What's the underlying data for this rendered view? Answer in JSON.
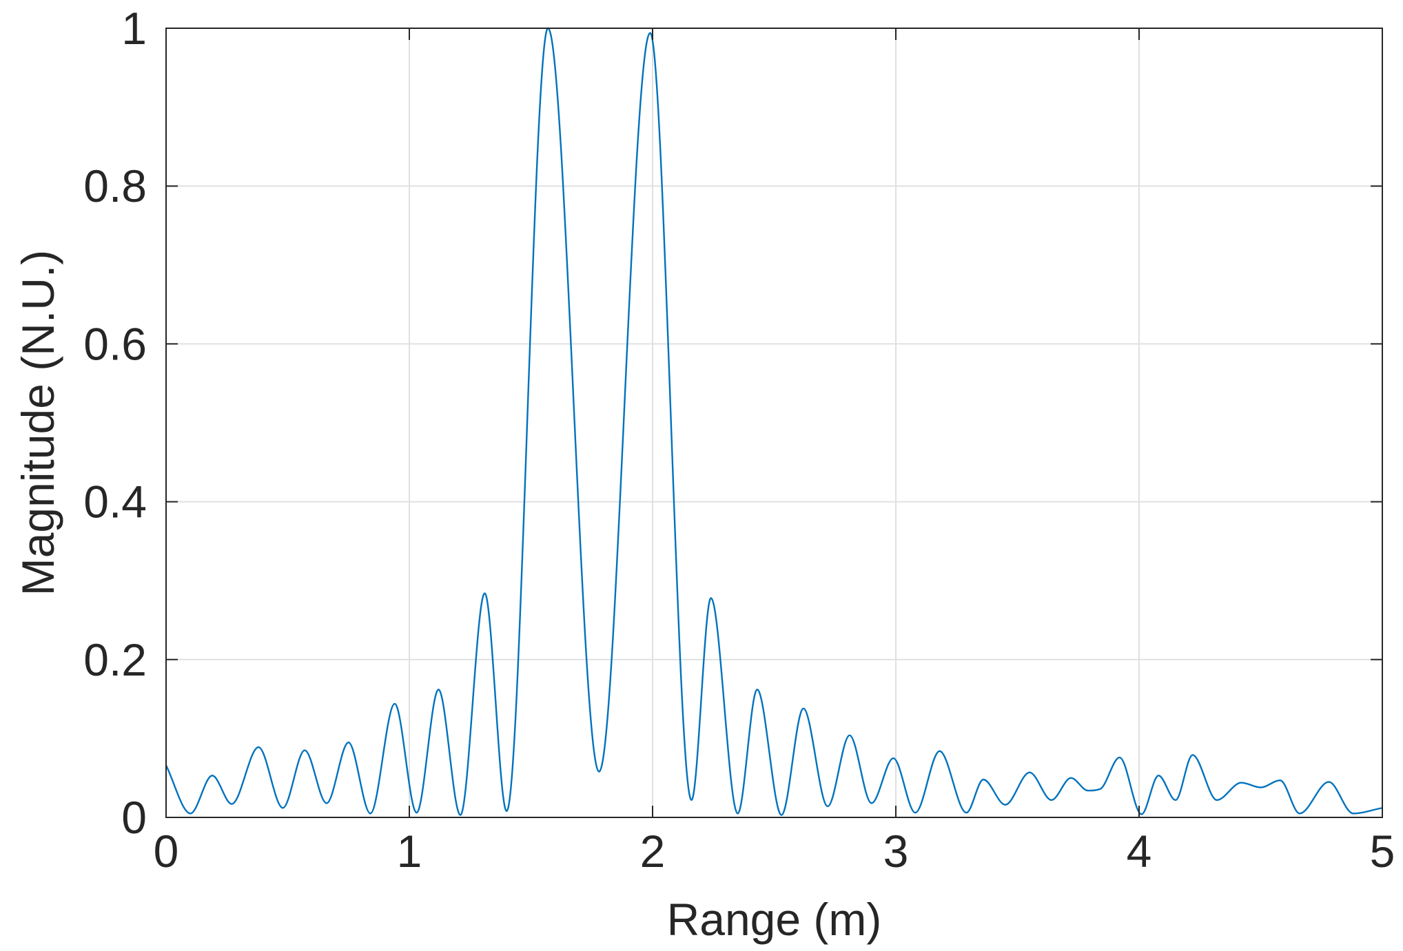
{
  "chart_data": {
    "type": "line",
    "title": "",
    "xlabel": "Range (m)",
    "ylabel": "Magnitude (N.U.)",
    "xlim": [
      0,
      5
    ],
    "ylim": [
      0,
      1
    ],
    "xticks": [
      "0",
      "1",
      "2",
      "3",
      "4",
      "5"
    ],
    "yticks": [
      "0",
      "0.2",
      "0.4",
      "0.6",
      "0.8",
      "1"
    ],
    "grid": true,
    "box": true,
    "colors": {
      "line": "#0072BD",
      "grid": "#e0e0e0",
      "axis": "#262626"
    },
    "series": [
      {
        "x": [
          0,
          0.1,
          0.19,
          0.27,
          0.38,
          0.48,
          0.57,
          0.66,
          0.75,
          0.84,
          0.94,
          1.03,
          1.12,
          1.21,
          1.31,
          1.4,
          1.57,
          1.78,
          1.99,
          2.16,
          2.24,
          2.35,
          2.43,
          2.53,
          2.62,
          2.72,
          2.81,
          2.9,
          2.99,
          3.08,
          3.18,
          3.29,
          3.36,
          3.45,
          3.55,
          3.64,
          3.72,
          3.79,
          3.84,
          3.92,
          4.01,
          4.08,
          4.15,
          4.22,
          4.32,
          4.42,
          4.5,
          4.58,
          4.66,
          4.78,
          4.88,
          5
        ],
        "y": [
          0.066,
          0.005,
          0.053,
          0.017,
          0.089,
          0.012,
          0.085,
          0.018,
          0.095,
          0.005,
          0.144,
          0.006,
          0.162,
          0.003,
          0.284,
          0.008,
          1.0,
          0.058,
          0.994,
          0.022,
          0.278,
          0.005,
          0.162,
          0.003,
          0.138,
          0.014,
          0.104,
          0.018,
          0.075,
          0.006,
          0.084,
          0.006,
          0.048,
          0.016,
          0.057,
          0.022,
          0.05,
          0.034,
          0.036,
          0.076,
          0.004,
          0.053,
          0.022,
          0.079,
          0.022,
          0.044,
          0.038,
          0.047,
          0.005,
          0.045,
          0.005,
          0.012
        ]
      }
    ]
  }
}
